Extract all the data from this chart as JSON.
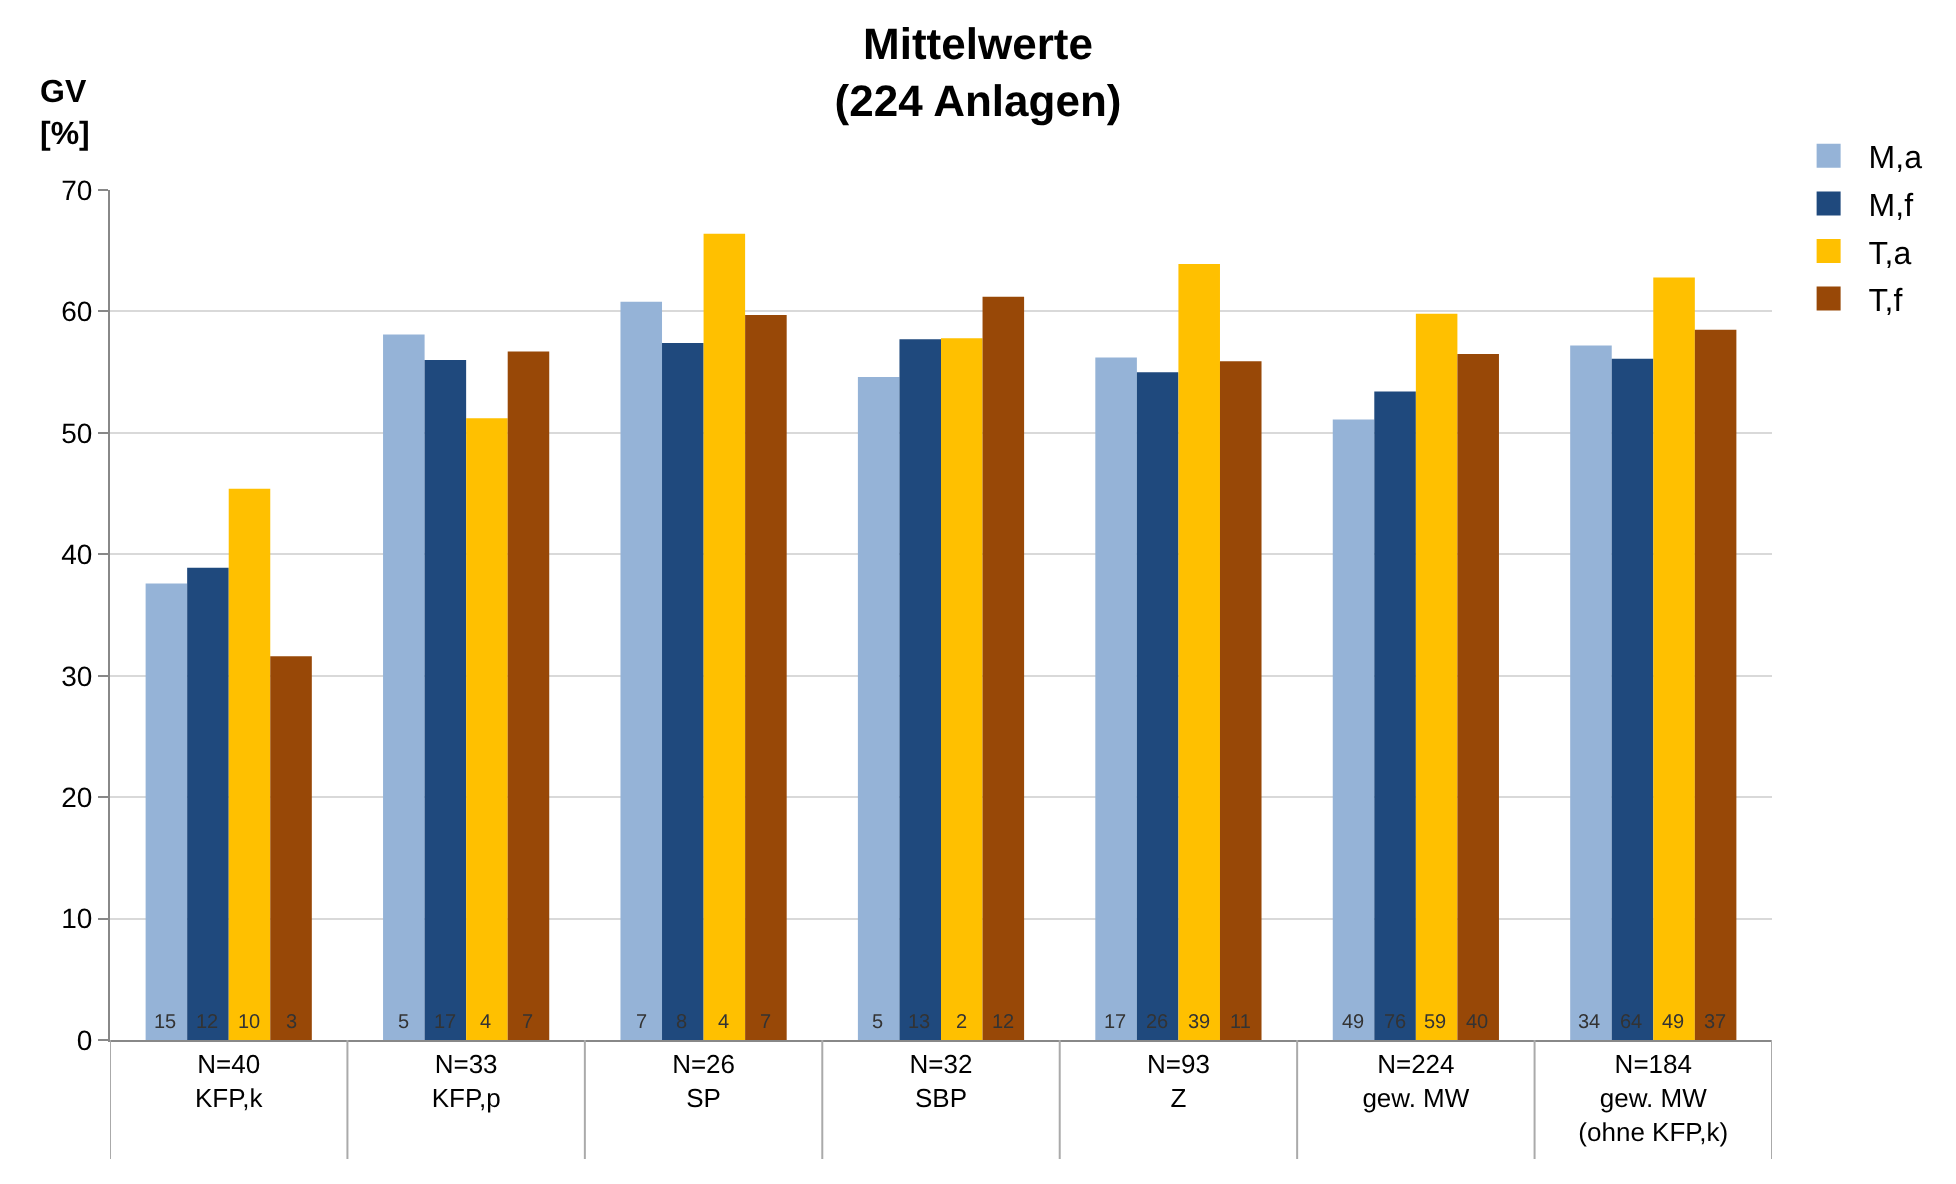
{
  "chart_data": {
    "type": "bar",
    "title": "Mittelwerte\n(224 Anlagen)",
    "ylabel": "GV\n[%]",
    "categories": [
      "N=40\nKFP,k",
      "N=33\nKFP,p",
      "N=26\nSP",
      "N=32\nSBP",
      "N=93\nZ",
      "N=224\ngew. MW",
      "N=184\ngew. MW\n(ohne KFP,k)"
    ],
    "series": [
      {
        "name": "M,a",
        "color": "#95b3d7",
        "values": [
          37.6,
          58.1,
          60.8,
          54.6,
          56.2,
          51.1,
          57.2
        ]
      },
      {
        "name": "M,f",
        "color": "#1f497d",
        "values": [
          38.9,
          56.0,
          57.4,
          57.7,
          55.0,
          53.4,
          56.1
        ]
      },
      {
        "name": "T,a",
        "color": "#ffc000",
        "values": [
          45.4,
          51.2,
          66.4,
          57.8,
          63.9,
          59.8,
          62.8
        ]
      },
      {
        "name": "T,f",
        "color": "#984807",
        "values": [
          31.6,
          56.7,
          59.7,
          61.2,
          55.9,
          56.5,
          58.5
        ]
      }
    ],
    "annotations": [
      {
        "text": "15",
        "x": "N=40\nKFP,k",
        "y": 0
      },
      {
        "text": "12",
        "x": "N=40\nKFP,k",
        "y": 0
      },
      {
        "text": "10",
        "x": "N=40\nKFP,k",
        "y": 0
      },
      {
        "text": "3",
        "x": "N=40\nKFP,k",
        "y": 0
      },
      {
        "text": "5",
        "x": "N=33\nKFP,p",
        "y": 0
      },
      {
        "text": "17",
        "x": "N=33\nKFP,p",
        "y": 0
      },
      {
        "text": "4",
        "x": "N=33\nKFP,p",
        "y": 0
      },
      {
        "text": "7",
        "x": "N=33\nKFP,p",
        "y": 0
      },
      {
        "text": "7",
        "x": "N=26\nSP",
        "y": 0
      },
      {
        "text": "8",
        "x": "N=26\nSP",
        "y": 0
      },
      {
        "text": "4",
        "x": "N=26\nSP",
        "y": 0
      },
      {
        "text": "7",
        "x": "N=26\nSP",
        "y": 0
      },
      {
        "text": "5",
        "x": "N=32\nSBP",
        "y": 0
      },
      {
        "text": "13",
        "x": "N=32\nSBP",
        "y": 0
      },
      {
        "text": "2",
        "x": "N=32\nSBP",
        "y": 0
      },
      {
        "text": "12",
        "x": "N=32\nSBP",
        "y": 0
      },
      {
        "text": "17",
        "x": "N=93\nZ",
        "y": 0
      },
      {
        "text": "26",
        "x": "N=93\nZ",
        "y": 0
      },
      {
        "text": "39",
        "x": "N=93\nZ",
        "y": 0
      },
      {
        "text": "11",
        "x": "N=93\nZ",
        "y": 0
      },
      {
        "text": "49",
        "x": "N=224\ngew. MW",
        "y": 0
      },
      {
        "text": "76",
        "x": "N=224\ngew. MW",
        "y": 0
      },
      {
        "text": "59",
        "x": "N=224\ngew. MW",
        "y": 0
      },
      {
        "text": "40",
        "x": "N=224\ngew. MW",
        "y": 0
      },
      {
        "text": "34",
        "x": "N=184\ngew. MW\n(ohne KFP,k)",
        "y": 0
      },
      {
        "text": "64",
        "x": "N=184\ngew. MW\n(ohne KFP,k)",
        "y": 0
      },
      {
        "text": "49",
        "x": "N=184\ngew. MW\n(ohne KFP,k)",
        "y": 0
      },
      {
        "text": "37",
        "x": "N=184\ngew. MW\n(ohne KFP,k)",
        "y": 0
      }
    ],
    "ylim": [
      0,
      70
    ],
    "yticks": [
      0,
      10,
      20,
      30,
      40,
      50,
      60,
      70
    ],
    "grid": "y",
    "legend": "top right"
  }
}
